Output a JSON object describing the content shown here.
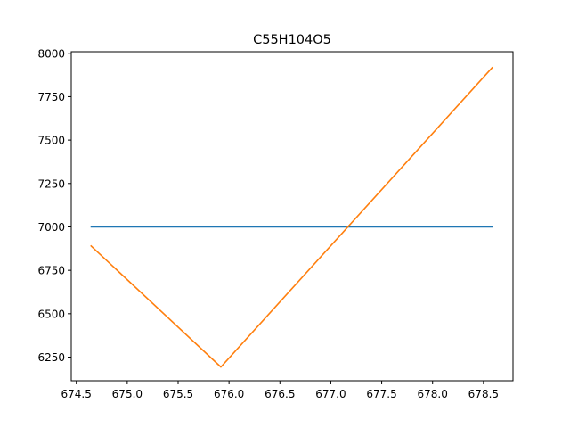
{
  "chart_data": {
    "type": "line",
    "title": "C55H104O5",
    "xlabel": "",
    "ylabel": "",
    "xlim": [
      674.45,
      678.79
    ],
    "ylim": [
      6114,
      8009
    ],
    "x_ticks": [
      674.5,
      675.0,
      675.5,
      676.0,
      676.5,
      677.0,
      677.5,
      678.0,
      678.5
    ],
    "x_tick_labels": [
      "674.5",
      "675.0",
      "675.5",
      "676.0",
      "676.5",
      "677.0",
      "677.5",
      "678.0",
      "678.5"
    ],
    "y_ticks": [
      6250,
      6500,
      6750,
      7000,
      7250,
      7500,
      7750,
      8000
    ],
    "y_tick_labels": [
      "6250",
      "6500",
      "6750",
      "7000",
      "7250",
      "7500",
      "7750",
      "8000"
    ],
    "grid": false,
    "series": [
      {
        "color": "#1f77b4",
        "x": [
          674.64,
          678.59
        ],
        "y": [
          7000,
          7000
        ]
      },
      {
        "color": "#ff7f0e",
        "x": [
          674.64,
          675.92,
          678.59
        ],
        "y": [
          6893,
          6193,
          7920
        ]
      }
    ]
  }
}
